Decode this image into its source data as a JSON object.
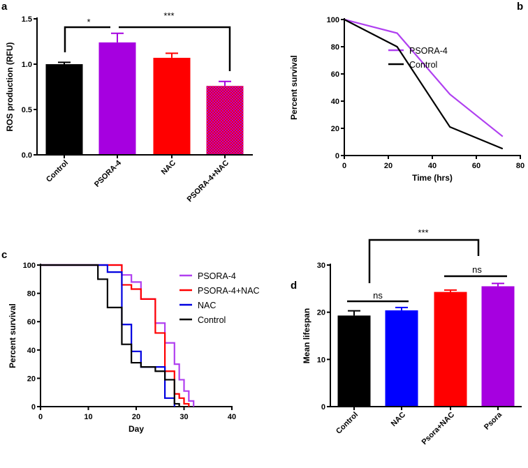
{
  "chart_data": [
    {
      "panel": "a",
      "type": "bar",
      "title": "",
      "xlabel": "",
      "ylabel": "ROS production (RFU)",
      "ylim": [
        0,
        1.5
      ],
      "yticks": [
        "0.0",
        "0.5",
        "1.0",
        "1.5"
      ],
      "categories": [
        "Control",
        "PSORA-4",
        "NAC",
        "PSORA-4+NAC"
      ],
      "values": [
        1.0,
        1.24,
        1.07,
        0.76
      ],
      "errors": [
        0.02,
        0.1,
        0.05,
        0.05
      ],
      "colors": [
        "#000000",
        "#a600e0",
        "#ff0000",
        "checker:#ff0000/#a600e0"
      ],
      "annotations": [
        {
          "label": "*",
          "from": "Control",
          "to": "PSORA-4"
        },
        {
          "label": "***",
          "from": "PSORA-4",
          "to": "PSORA-4+NAC"
        }
      ]
    },
    {
      "panel": "b",
      "type": "line",
      "xlabel": "Time (hrs)",
      "ylabel": "Percent survival",
      "xlim": [
        0,
        80
      ],
      "ylim": [
        0,
        100
      ],
      "xticks": [
        "0",
        "20",
        "40",
        "60",
        "80"
      ],
      "yticks": [
        "0",
        "20",
        "40",
        "60",
        "80",
        "100"
      ],
      "legend": "top-right",
      "series": [
        {
          "name": "PSORA-4",
          "color": "#b040f0",
          "x": [
            0,
            24,
            48,
            72
          ],
          "y": [
            100,
            90,
            45,
            14
          ]
        },
        {
          "name": "Control",
          "color": "#000000",
          "x": [
            0,
            24,
            48,
            72
          ],
          "y": [
            100,
            80,
            21,
            5
          ]
        }
      ]
    },
    {
      "panel": "c",
      "type": "line",
      "step": true,
      "xlabel": "Day",
      "ylabel": "Percent survival",
      "xlim": [
        0,
        40
      ],
      "ylim": [
        0,
        100
      ],
      "xticks": [
        "0",
        "10",
        "20",
        "30",
        "40"
      ],
      "yticks": [
        "0",
        "20",
        "40",
        "60",
        "80",
        "100"
      ],
      "legend": "top-right",
      "series": [
        {
          "name": "PSORA-4",
          "color": "#b040f0",
          "x": [
            0,
            17,
            19,
            21,
            24,
            26,
            28,
            29,
            30,
            31,
            32
          ],
          "y": [
            100,
            93,
            88,
            76,
            59,
            45,
            30,
            19,
            11,
            4,
            0
          ]
        },
        {
          "name": "PSORA-4+NAC",
          "color": "#ff0000",
          "x": [
            0,
            17,
            19,
            21,
            24,
            26,
            28,
            29,
            30,
            31
          ],
          "y": [
            100,
            86,
            83,
            76,
            52,
            25,
            9,
            6,
            2,
            0
          ]
        },
        {
          "name": "NAC",
          "color": "#0000e0",
          "x": [
            0,
            14,
            17,
            19,
            21,
            26,
            28
          ],
          "y": [
            100,
            95,
            58,
            39,
            28,
            6,
            0
          ]
        },
        {
          "name": "Control",
          "color": "#000000",
          "x": [
            0,
            12,
            14,
            17,
            19,
            21,
            24,
            26,
            28,
            29
          ],
          "y": [
            100,
            90,
            70,
            44,
            31,
            28,
            25,
            19,
            2,
            0
          ]
        }
      ]
    },
    {
      "panel": "d",
      "type": "bar",
      "xlabel": "",
      "ylabel": "Mean lifespan",
      "ylim": [
        0,
        30
      ],
      "yticks": [
        "0",
        "10",
        "20",
        "30"
      ],
      "categories": [
        "Control",
        "NAC",
        "Psora+NAC",
        "Psora"
      ],
      "values": [
        19.3,
        20.4,
        24.3,
        25.5
      ],
      "errors": [
        1.0,
        0.6,
        0.4,
        0.6
      ],
      "colors": [
        "#000000",
        "#0000ff",
        "#ff0000",
        "#a600e0"
      ],
      "annotations": [
        {
          "label": "***",
          "from": "Control",
          "to": "Psora"
        },
        {
          "label": "ns",
          "from": "Control",
          "to": "NAC"
        },
        {
          "label": "ns",
          "from": "Psora+NAC",
          "to": "Psora"
        }
      ]
    }
  ]
}
